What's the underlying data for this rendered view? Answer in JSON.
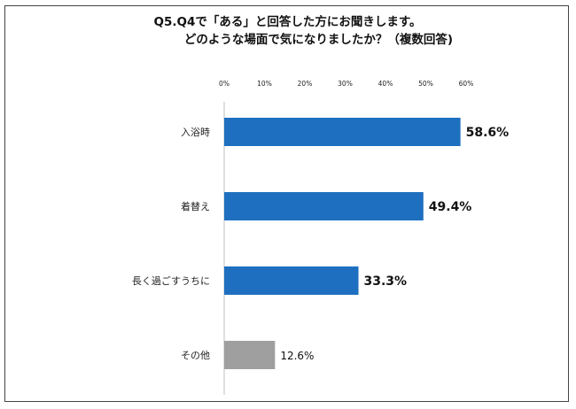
{
  "chart_data": {
    "type": "bar",
    "orientation": "horizontal",
    "title_line1": "Q5.Q4で「ある」と回答した方にお聞きします。",
    "title_line2": "どのような場面で気になりましたか？（複数回答)",
    "categories": [
      "入浴時",
      "着替え",
      "長く過ごすうちに",
      "その他"
    ],
    "values": [
      58.6,
      49.4,
      33.3,
      12.6
    ],
    "value_labels": [
      "58.6%",
      "49.4%",
      "33.3%",
      "12.6%"
    ],
    "xticks": [
      "0%",
      "10%",
      "20%",
      "30%",
      "40%",
      "50%",
      "60%"
    ],
    "xlim": [
      0,
      60
    ],
    "grid": false,
    "colors": {
      "main": "#1e6fbf",
      "other": "#a6a6a6"
    }
  }
}
